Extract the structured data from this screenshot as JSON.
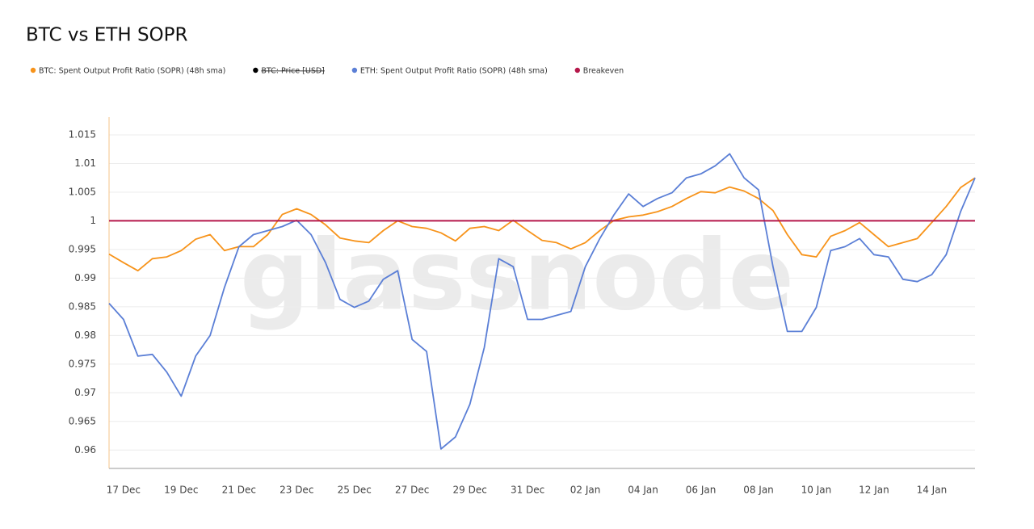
{
  "chart_data": {
    "type": "line",
    "title": "BTC vs ETH SOPR",
    "watermark": "glassnode",
    "categories": [
      null,
      "17 Dec",
      null,
      null,
      null,
      "19 Dec",
      null,
      null,
      null,
      "21 Dec",
      null,
      null,
      null,
      "23 Dec",
      null,
      null,
      null,
      "25 Dec",
      null,
      null,
      null,
      "27 Dec",
      null,
      null,
      null,
      "29 Dec",
      null,
      null,
      null,
      "31 Dec",
      null,
      null,
      null,
      "02 Jan",
      null,
      null,
      null,
      "04 Jan",
      null,
      null,
      null,
      "06 Jan",
      null,
      null,
      null,
      "08 Jan",
      null,
      null,
      null,
      "10 Jan",
      null,
      null,
      null,
      "12 Jan",
      null,
      null,
      null,
      "14 Jan",
      null,
      null,
      null
    ],
    "series": [
      {
        "name": "BTC: Spent Output Profit Ratio (SOPR) (48h sma)",
        "color": "#f7931a",
        "values": [
          0.9942,
          0.9927,
          0.9913,
          0.9934,
          0.9937,
          0.9948,
          0.9968,
          0.9976,
          0.9948,
          0.9955,
          0.9955,
          0.9976,
          1.0011,
          1.0021,
          1.0011,
          0.9993,
          0.997,
          0.9965,
          0.9962,
          0.9983,
          1.0,
          0.999,
          0.9987,
          0.9979,
          0.9965,
          0.9987,
          0.999,
          0.9983,
          1.0001,
          0.9983,
          0.9966,
          0.9962,
          0.9951,
          0.9962,
          0.9983,
          1.0001,
          1.0007,
          1.001,
          1.0016,
          1.0025,
          1.0039,
          1.0051,
          1.0049,
          1.0059,
          1.0052,
          1.0039,
          1.0018,
          0.9976,
          0.9941,
          0.9937,
          0.9973,
          0.9983,
          0.9997,
          0.9976,
          0.9955,
          0.9962,
          0.9969,
          0.9997,
          1.0025,
          1.0058,
          1.0075
        ]
      },
      {
        "name": "BTC: Price [USD]",
        "color": "#000000",
        "hidden": true
      },
      {
        "name": "ETH: Spent Output Profit Ratio (SOPR) (48h sma)",
        "color": "#5b7fd6",
        "values": [
          0.9856,
          0.9828,
          0.9764,
          0.9767,
          0.9736,
          0.9694,
          0.9764,
          0.98,
          0.9884,
          0.9955,
          0.9976,
          0.9983,
          0.999,
          1.0001,
          0.9976,
          0.9927,
          0.9863,
          0.9849,
          0.986,
          0.9898,
          0.9913,
          0.9793,
          0.9772,
          0.9602,
          0.9623,
          0.968,
          0.9779,
          0.9934,
          0.992,
          0.9828,
          0.9828,
          0.9835,
          0.9842,
          0.992,
          0.9969,
          1.0011,
          1.0047,
          1.0025,
          1.0039,
          1.0049,
          1.0075,
          1.0082,
          1.0096,
          1.0117,
          1.0075,
          1.0054,
          0.992,
          0.9807,
          0.9807,
          0.9849,
          0.9948,
          0.9955,
          0.9969,
          0.9941,
          0.9937,
          0.9898,
          0.9894,
          0.9906,
          0.9941,
          1.0016,
          1.0075
        ]
      },
      {
        "name": "Breakeven",
        "color": "#b5174a",
        "values": [
          1,
          1,
          1,
          1,
          1,
          1,
          1,
          1,
          1,
          1,
          1,
          1,
          1,
          1,
          1,
          1,
          1,
          1,
          1,
          1,
          1,
          1,
          1,
          1,
          1,
          1,
          1,
          1,
          1,
          1,
          1,
          1,
          1,
          1,
          1,
          1,
          1,
          1,
          1,
          1,
          1,
          1,
          1,
          1,
          1,
          1,
          1,
          1,
          1,
          1,
          1,
          1,
          1,
          1,
          1,
          1,
          1,
          1,
          1,
          1,
          1
        ]
      }
    ],
    "ylim": [
      0.9568,
      1.0181
    ],
    "yticks": [
      0.96,
      0.965,
      0.97,
      0.975,
      0.98,
      0.985,
      0.99,
      0.995,
      1,
      1.005,
      1.01,
      1.015
    ],
    "grid": true
  }
}
